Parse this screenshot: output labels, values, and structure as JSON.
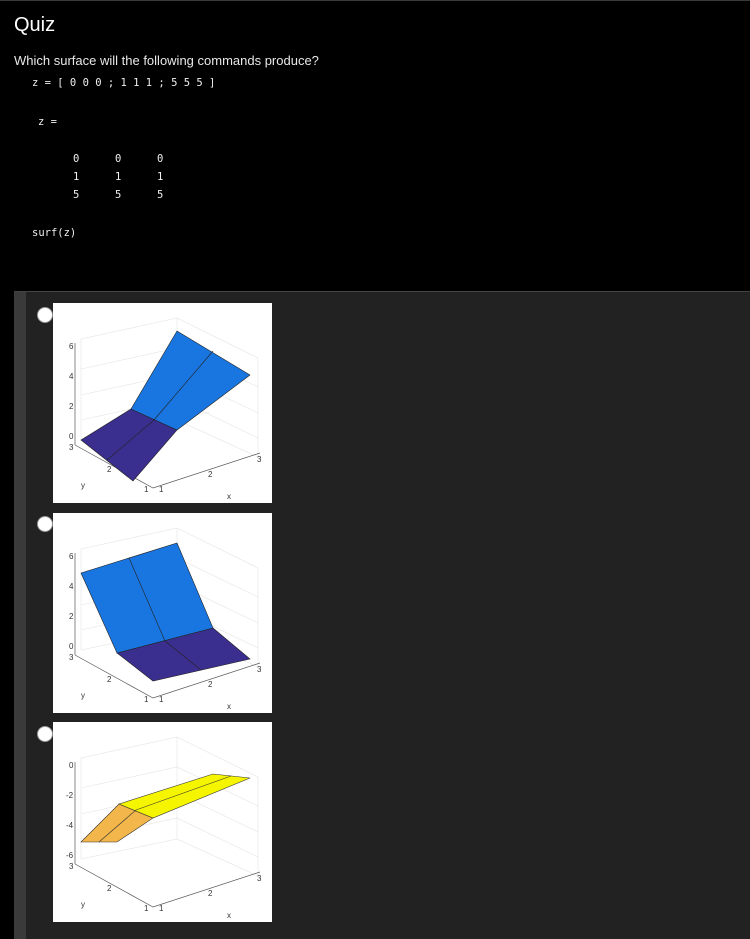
{
  "title": "Quiz",
  "question": "Which surface will the following commands produce?",
  "code": {
    "assignment": "z = [ 0 0 0 ; 1 1 1 ; 5 5 5 ]",
    "output_label": "z =",
    "matrix_rows": [
      [
        "0",
        "0",
        "0"
      ],
      [
        "1",
        "1",
        "1"
      ],
      [
        "5",
        "5",
        "5"
      ]
    ],
    "command": "surf(z)"
  },
  "options": [
    {
      "z_ticks": [
        "6",
        "4",
        "2",
        "0"
      ],
      "y_ticks": [
        "3",
        "2",
        "1"
      ],
      "x_ticks": [
        "1",
        "2",
        "3"
      ],
      "xlabel": "x",
      "ylabel": "y",
      "colors": {
        "upper": "#1976e0",
        "lower": "#3a2f8f"
      }
    },
    {
      "z_ticks": [
        "6",
        "4",
        "2",
        "0"
      ],
      "y_ticks": [
        "3",
        "2",
        "1"
      ],
      "x_ticks": [
        "1",
        "2",
        "3"
      ],
      "xlabel": "x",
      "ylabel": "y",
      "colors": {
        "upper": "#1976e0",
        "lower": "#3a2f8f"
      }
    },
    {
      "z_ticks": [
        "0",
        "-2",
        "-4",
        "-6"
      ],
      "y_ticks": [
        "3",
        "2",
        "1"
      ],
      "x_ticks": [
        "1",
        "2",
        "3"
      ],
      "xlabel": "x",
      "ylabel": "y",
      "colors": {
        "upper": "#f5f500",
        "lower": "#f2b64a"
      }
    }
  ]
}
